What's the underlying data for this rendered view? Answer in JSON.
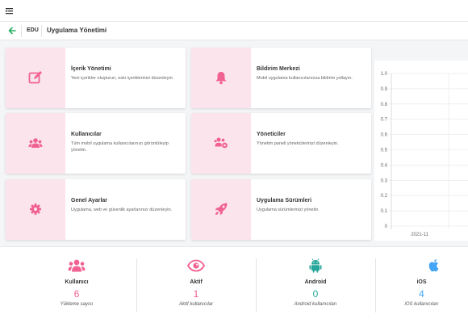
{
  "colors": {
    "accent_green": "#27ae60",
    "pink_icon": "#f06292",
    "pink_bg": "#fce4ec",
    "android_teal": "#26a69a",
    "ios_blue": "#42a5f5"
  },
  "topbar": {
    "menu_icon": "hamburger-icon"
  },
  "breadcrumb": {
    "back_icon": "arrow-left-icon",
    "section": "EDU",
    "title": "Uygulama Yönetimi"
  },
  "cards": [
    {
      "icon": "edit-icon",
      "title": "İçerik Yönetimi",
      "desc": "Yeni içerikler oluşturun, eski içeriklerinizi düzenleyin."
    },
    {
      "icon": "bell-icon",
      "title": "Bildirim Merkezi",
      "desc": "Mobil uygulama kullanıcılarınıza bildirim yollayın."
    },
    {
      "icon": "users-icon",
      "title": "Kullanıcılar",
      "desc": "Tüm mobil uygulama kullanıcılarınızı görüntüleyip yönetin."
    },
    {
      "icon": "users-cog-icon",
      "title": "Yöneticiler",
      "desc": "Yönetim paneli yöneticilerinizi düzenleyin."
    },
    {
      "icon": "gear-icon",
      "title": "Genel Ayarlar",
      "desc": "Uygulama, web ve güvenlik ayarlarınızı düzenleyin."
    },
    {
      "icon": "rocket-icon",
      "title": "Uygulama Sürümleri",
      "desc": "Uygulama sürümlerinizi yönetin"
    }
  ],
  "chart_data": {
    "type": "line",
    "categories": [
      "2021-11"
    ],
    "series": [],
    "ylim": [
      0,
      1
    ],
    "yticks": [
      "1.0",
      "0.9",
      "0.8",
      "0.7",
      "0.6",
      "0.5",
      "0.4",
      "0.3",
      "0.2",
      "0.1",
      "0"
    ],
    "grid": true
  },
  "stats": [
    {
      "icon": "users-icon",
      "label": "Kullanıcı",
      "value": "6",
      "sub": "Yükleme sayısı",
      "color": "#f06292"
    },
    {
      "icon": "eye-icon",
      "label": "Aktif",
      "value": "1",
      "sub": "Aktif kullanıcılar",
      "color": "#f06292"
    },
    {
      "icon": "android-icon",
      "label": "Android",
      "value": "0",
      "sub": "Android kullanıcıları",
      "color": "#26a69a"
    },
    {
      "icon": "apple-icon",
      "label": "iOS",
      "value": "4",
      "sub": "iOS kullanıcıları",
      "color": "#42a5f5"
    }
  ]
}
